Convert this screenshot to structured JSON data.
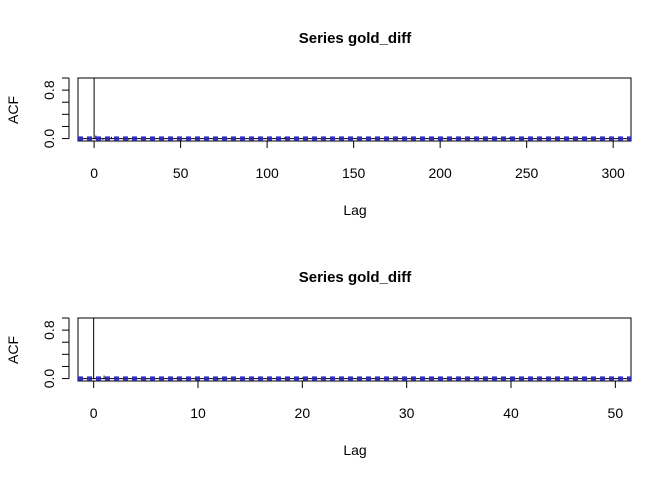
{
  "chart_data": [
    {
      "type": "bar",
      "title": "Series  gold_diff",
      "xlabel": "Lag",
      "ylabel": "ACF",
      "xlim": [
        -9.3,
        310.3
      ],
      "ylim": [
        -0.04,
        1.0
      ],
      "x_ticks": [
        0,
        50,
        100,
        150,
        200,
        250,
        300
      ],
      "y_ticks": [
        0.0,
        0.8
      ],
      "y_minor_ticks": [
        0.2,
        0.4,
        0.6,
        1.0
      ],
      "conf_limit": 0.02,
      "conf_color": "#3333cc",
      "max_lag": 301,
      "values": [
        {
          "lag": 0,
          "acf": 1.0
        },
        {
          "lag": 1,
          "acf": 0.05
        },
        {
          "lag": 2,
          "acf": -0.02
        },
        {
          "lag": 3,
          "acf": 0.03
        },
        {
          "lag": 5,
          "acf": -0.02
        },
        {
          "lag": 10,
          "acf": 0.03
        },
        {
          "lag": 20,
          "acf": -0.02
        },
        {
          "lag": 40,
          "acf": 0.02
        },
        {
          "lag": 60,
          "acf": -0.02
        },
        {
          "lag": 110,
          "acf": 0.02
        },
        {
          "lag": 180,
          "acf": -0.02
        },
        {
          "lag": 240,
          "acf": 0.02
        }
      ]
    },
    {
      "type": "bar",
      "title": "Series  gold_diff",
      "xlabel": "Lag",
      "ylabel": "ACF",
      "xlim": [
        -1.5,
        51.5
      ],
      "ylim": [
        -0.04,
        1.0
      ],
      "x_ticks": [
        0,
        10,
        20,
        30,
        40,
        50
      ],
      "y_ticks": [
        0.0,
        0.8
      ],
      "y_minor_ticks": [
        0.2,
        0.4,
        0.6,
        1.0
      ],
      "conf_limit": 0.02,
      "conf_color": "#3333cc",
      "max_lag": 50,
      "values": [
        {
          "lag": 0,
          "acf": 1.0
        },
        {
          "lag": 1,
          "acf": 0.05
        },
        {
          "lag": 2,
          "acf": -0.02
        },
        {
          "lag": 3,
          "acf": 0.02
        },
        {
          "lag": 5,
          "acf": -0.02
        },
        {
          "lag": 8,
          "acf": 0.02
        },
        {
          "lag": 12,
          "acf": -0.02
        },
        {
          "lag": 20,
          "acf": 0.02
        },
        {
          "lag": 30,
          "acf": -0.02
        },
        {
          "lag": 40,
          "acf": 0.02
        }
      ]
    }
  ]
}
